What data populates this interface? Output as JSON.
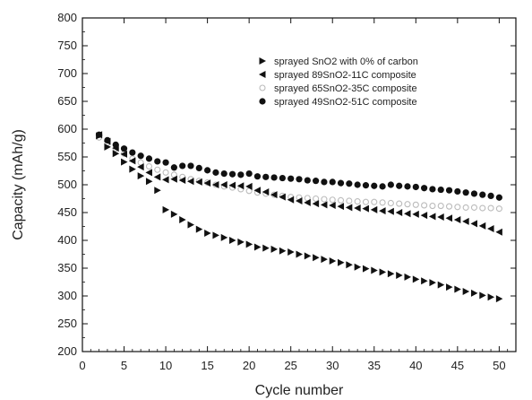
{
  "chart_data": {
    "type": "scatter",
    "title": "",
    "xlabel": "Cycle number",
    "ylabel": "Capacity (mAh/g)",
    "xlim": [
      0,
      52
    ],
    "ylim": [
      200,
      800
    ],
    "xticks": [
      0,
      5,
      10,
      15,
      20,
      25,
      30,
      35,
      40,
      45,
      50
    ],
    "yticks": [
      200,
      250,
      300,
      350,
      400,
      450,
      500,
      550,
      600,
      650,
      700,
      750,
      800
    ],
    "grid": false,
    "legend_position": "top-right",
    "series": [
      {
        "name": "sprayed SnO2 with 0% of carbon",
        "marker": "triangle-right",
        "color": "#111111",
        "x": [
          2,
          3,
          4,
          5,
          6,
          7,
          8,
          9,
          10,
          11,
          12,
          13,
          14,
          15,
          16,
          17,
          18,
          19,
          20,
          21,
          22,
          23,
          24,
          25,
          26,
          27,
          28,
          29,
          30,
          31,
          32,
          33,
          34,
          35,
          36,
          37,
          38,
          39,
          40,
          41,
          42,
          43,
          44,
          45,
          46,
          47,
          48,
          49,
          50
        ],
        "y": [
          588,
          568,
          556,
          541,
          528,
          516,
          506,
          490,
          455,
          447,
          437,
          428,
          420,
          413,
          409,
          405,
          400,
          397,
          393,
          388,
          386,
          384,
          381,
          379,
          375,
          372,
          369,
          366,
          363,
          360,
          356,
          352,
          349,
          346,
          343,
          340,
          337,
          334,
          330,
          327,
          324,
          320,
          316,
          312,
          308,
          305,
          301,
          298,
          295
        ]
      },
      {
        "name": "sprayed 89SnO2-11C  composite",
        "marker": "triangle-left",
        "color": "#111111",
        "x": [
          2,
          3,
          4,
          5,
          6,
          7,
          8,
          9,
          10,
          11,
          12,
          13,
          14,
          15,
          16,
          17,
          18,
          19,
          20,
          21,
          22,
          23,
          24,
          25,
          26,
          27,
          28,
          29,
          30,
          31,
          32,
          33,
          34,
          35,
          36,
          37,
          38,
          39,
          40,
          41,
          42,
          43,
          44,
          45,
          46,
          47,
          48,
          49,
          50
        ],
        "y": [
          590,
          578,
          566,
          555,
          543,
          532,
          522,
          514,
          509,
          510,
          508,
          506,
          505,
          503,
          500,
          500,
          499,
          498,
          497,
          490,
          487,
          482,
          478,
          473,
          471,
          468,
          466,
          464,
          463,
          461,
          459,
          458,
          457,
          455,
          453,
          452,
          450,
          448,
          447,
          445,
          443,
          442,
          440,
          437,
          434,
          430,
          426,
          421,
          415
        ]
      },
      {
        "name": "sprayed 65SnO2-35C  composite",
        "marker": "circle-open",
        "color": "#bbbbbb",
        "x": [
          2,
          3,
          4,
          5,
          6,
          7,
          8,
          9,
          10,
          11,
          12,
          13,
          14,
          15,
          16,
          17,
          18,
          19,
          20,
          21,
          22,
          23,
          24,
          25,
          26,
          27,
          28,
          29,
          30,
          31,
          32,
          33,
          34,
          35,
          36,
          37,
          38,
          39,
          40,
          41,
          42,
          43,
          44,
          45,
          46,
          47,
          48,
          49,
          50
        ],
        "y": [
          585,
          575,
          565,
          556,
          547,
          540,
          533,
          527,
          522,
          518,
          514,
          510,
          507,
          504,
          500,
          497,
          495,
          492,
          489,
          486,
          484,
          482,
          480,
          478,
          477,
          476,
          475,
          474,
          473,
          472,
          471,
          470,
          469,
          469,
          468,
          467,
          466,
          465,
          464,
          463,
          462,
          462,
          461,
          460,
          459,
          459,
          458,
          458,
          457
        ]
      },
      {
        "name": "sprayed 49SnO2-51C  composite",
        "marker": "circle-filled",
        "color": "#111111",
        "x": [
          2,
          3,
          4,
          5,
          6,
          7,
          8,
          9,
          10,
          11,
          12,
          13,
          14,
          15,
          16,
          17,
          18,
          19,
          20,
          21,
          22,
          23,
          24,
          25,
          26,
          27,
          28,
          29,
          30,
          31,
          32,
          33,
          34,
          35,
          36,
          37,
          38,
          39,
          40,
          41,
          42,
          43,
          44,
          45,
          46,
          47,
          48,
          49,
          50
        ],
        "y": [
          590,
          580,
          572,
          565,
          558,
          552,
          547,
          542,
          540,
          531,
          534,
          534,
          530,
          526,
          522,
          520,
          519,
          518,
          520,
          515,
          514,
          513,
          512,
          511,
          510,
          508,
          507,
          505,
          505,
          503,
          502,
          500,
          499,
          498,
          497,
          500,
          498,
          497,
          496,
          494,
          492,
          491,
          490,
          488,
          486,
          484,
          482,
          480,
          477
        ]
      }
    ]
  }
}
